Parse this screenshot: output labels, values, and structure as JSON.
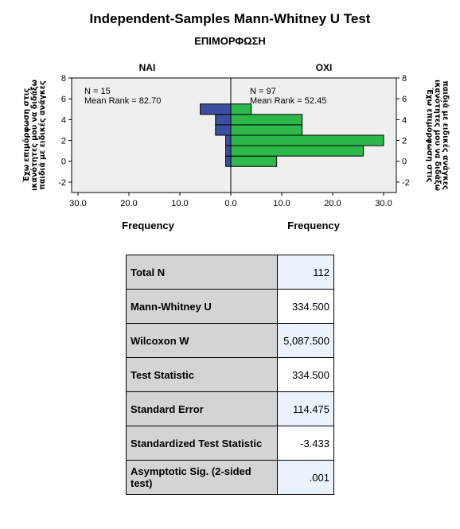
{
  "title": "Independent-Samples Mann-Whitney U Test",
  "subtitle": "ΕΠΙΜΟΡΦΩΣΗ",
  "chart_data": {
    "type": "bar",
    "orientation": "horizontal",
    "layout": "back-to-back histogram",
    "y_axis_label": "Έχω επιμόρφωση στις ικανότητες μου να διδάξω παιδιά με ειδικές ανάγκες",
    "y_ticks": [
      "-2",
      "0",
      "2",
      "4",
      "6",
      "8"
    ],
    "y_range": [
      -3,
      8
    ],
    "x_ticks_left": [
      "30.0",
      "20.0",
      "10.0",
      "0.0"
    ],
    "x_ticks_right": [
      "0.0",
      "10.0",
      "20.0",
      "30.0"
    ],
    "x_range": [
      0,
      30
    ],
    "x_label_left": "Frequency",
    "x_label_right": "Frequency",
    "bin_centers": [
      0,
      1,
      2,
      3,
      4,
      5
    ],
    "panels": [
      {
        "name": "ΝΑΙ",
        "side": "left",
        "color": "#3b4fa0",
        "n_text": "N = 15",
        "mean_rank_text": "Mean Rank = 82.70",
        "values": [
          1,
          1,
          1,
          3,
          3,
          6
        ]
      },
      {
        "name": "ΟΧΙ",
        "side": "right",
        "color": "#2db84a",
        "n_text": "N = 97",
        "mean_rank_text": "Mean Rank = 52.45",
        "values": [
          9,
          26,
          30,
          14,
          14,
          4
        ]
      }
    ],
    "grid": false,
    "background": "#efefef"
  },
  "stats": [
    {
      "label": "Total N",
      "value": "112",
      "highlight": true
    },
    {
      "label": "Mann-Whitney U",
      "value": "334.500",
      "highlight": false
    },
    {
      "label": "Wilcoxon W",
      "value": "5,087.500",
      "highlight": true
    },
    {
      "label": "Test Statistic",
      "value": "334.500",
      "highlight": false
    },
    {
      "label": "Standard Error",
      "value": "114.475",
      "highlight": true
    },
    {
      "label": "Standardized Test Statistic",
      "value": "-3.433",
      "highlight": false
    },
    {
      "label": "Asymptotic Sig. (2-sided test)",
      "value": ".001",
      "highlight": true
    }
  ]
}
